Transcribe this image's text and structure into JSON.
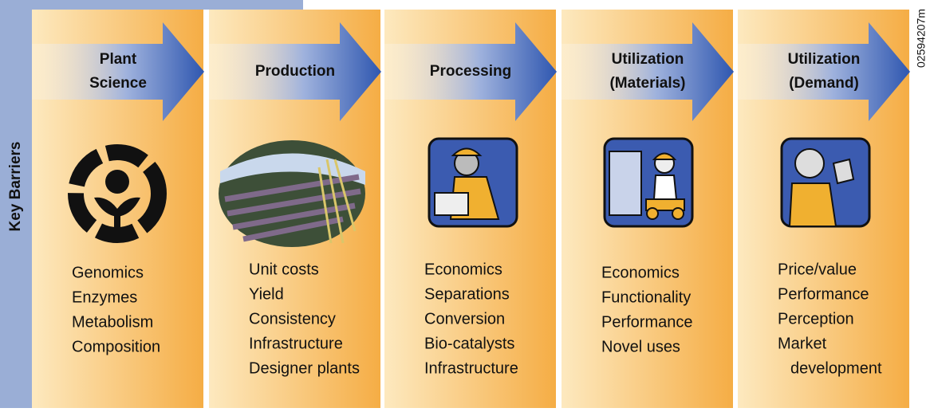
{
  "side_label": "Key Barriers",
  "code": "02594207m",
  "stages": [
    {
      "title_lines": [
        "Plant",
        "Science"
      ],
      "items": [
        "Genomics",
        "Enzymes",
        "Metabolism",
        "Composition"
      ]
    },
    {
      "title_lines": [
        "Production"
      ],
      "items": [
        "Unit costs",
        "Yield",
        "Consistency",
        "Infrastructure",
        "Designer plants"
      ]
    },
    {
      "title_lines": [
        "Processing"
      ],
      "items": [
        "Economics",
        "Separations",
        "Conversion",
        "Bio-catalysts",
        "Infrastructure"
      ]
    },
    {
      "title_lines": [
        "Utilization",
        "(Materials)"
      ],
      "items": [
        "Economics",
        "Functionality",
        "Performance",
        "Novel uses"
      ]
    },
    {
      "title_lines": [
        "Utilization",
        "(Demand)"
      ],
      "items": [
        "Price/value",
        "Performance",
        "Perception",
        "Market",
        "development"
      ]
    }
  ]
}
